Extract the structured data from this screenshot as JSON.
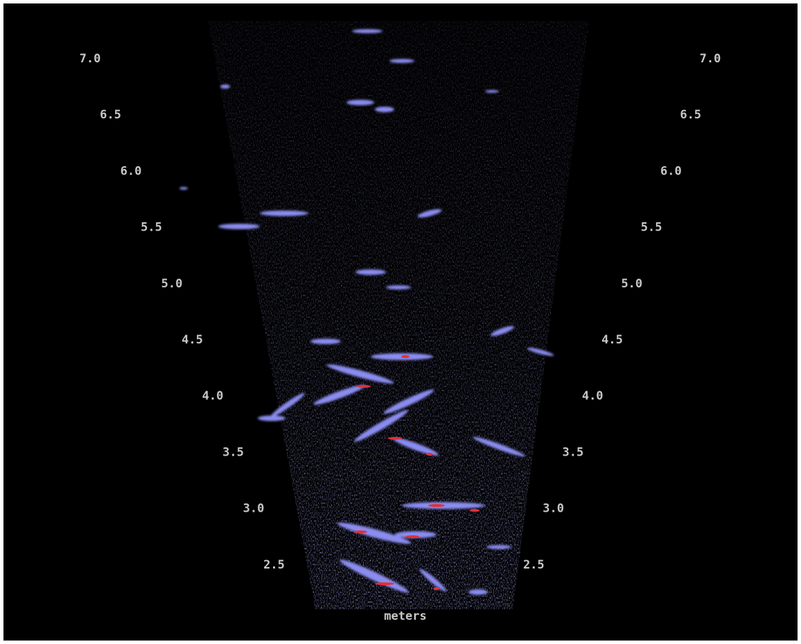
{
  "range_labels": [
    "7.0",
    "6.5",
    "6.0",
    "5.5",
    "5.0",
    "4.5",
    "4.0",
    "3.5",
    "3.0",
    "2.5"
  ],
  "unit_label": "meters"
}
